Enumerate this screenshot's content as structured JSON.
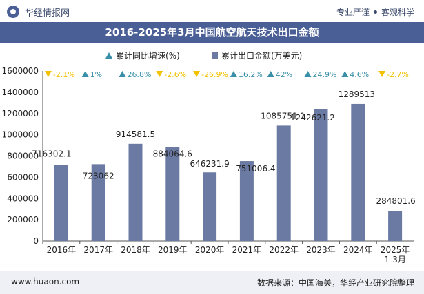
{
  "header": {
    "logo_text": "华经情报网",
    "tagline_left": "专业严谨",
    "tagline_right": "客观科学"
  },
  "title": "2016-2025年3月中国航空航天技术出口金额",
  "legend": {
    "growth_label": "累计同比增速(%)",
    "amount_label": "累计出口金额(万美元)"
  },
  "footer": {
    "website": "www.huaon.com",
    "source": "数据来源：中国海关，华经产业研究院整理"
  },
  "colors": {
    "bar": "#6b7aa3",
    "header_bg": "#4a5f95",
    "up": "#3a8fa8",
    "down": "#f2c200"
  },
  "chart_data": {
    "type": "bar",
    "categories": [
      "2016年",
      "2017年",
      "2018年",
      "2019年",
      "2020年",
      "2021年",
      "2022年",
      "2023年",
      "2024年",
      "2025年\n1-3月"
    ],
    "series": [
      {
        "name": "累计出口金额(万美元)",
        "values": [
          716302.1,
          723062,
          914581.5,
          884064.6,
          646231.9,
          751006.4,
          1085751.1,
          1242621.2,
          1289513,
          284801.6
        ],
        "labels": [
          "716302.1",
          "723062",
          "914581.5",
          "884064.6",
          "646231.9",
          "751006.4",
          "1085751.1",
          "1242621.2",
          "1289513",
          "284801.6"
        ]
      },
      {
        "name": "累计同比增速(%)",
        "values": [
          -2.1,
          1,
          26.8,
          -2.6,
          -26.9,
          16.2,
          42,
          24.9,
          4.6,
          -2.7
        ],
        "labels": [
          "-2.1%",
          "1%",
          "26.8%",
          "-2.6%",
          "-26.9%",
          "16.2%",
          "42%",
          "24.9%",
          "4.6%",
          "-2.7%"
        ]
      }
    ],
    "yticks": [
      "0",
      "200000",
      "400000",
      "600000",
      "800000",
      "1000000",
      "1200000",
      "1400000",
      "1600000"
    ],
    "ylim": [
      0,
      1600000
    ],
    "xlabel": "",
    "ylabel": "",
    "legend_position": "top"
  }
}
